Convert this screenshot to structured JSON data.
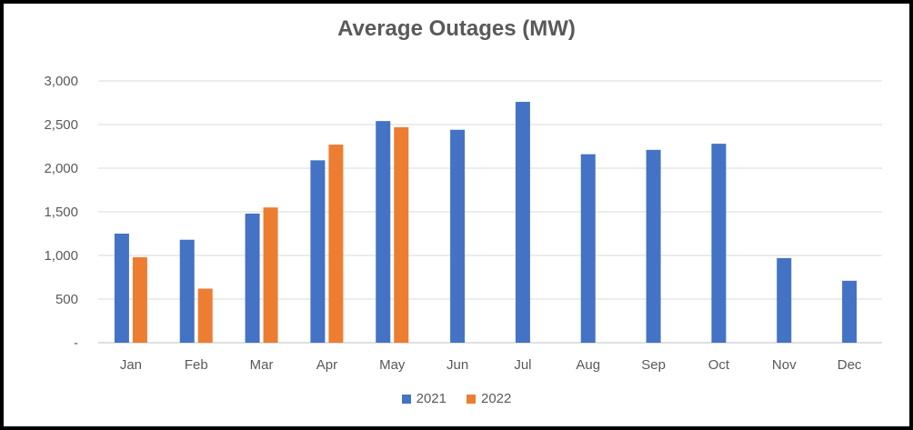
{
  "chart_data": {
    "type": "bar",
    "title": "Average Outages (MW)",
    "xlabel": "",
    "ylabel": "",
    "categories": [
      "Jan",
      "Feb",
      "Mar",
      "Apr",
      "May",
      "Jun",
      "Jul",
      "Aug",
      "Sep",
      "Oct",
      "Nov",
      "Dec"
    ],
    "series": [
      {
        "name": "2021",
        "color": "#4472C4",
        "values": [
          1250,
          1180,
          1480,
          2090,
          2540,
          2440,
          2760,
          2160,
          2210,
          2280,
          970,
          710
        ]
      },
      {
        "name": "2022",
        "color": "#ED7D31",
        "values": [
          980,
          620,
          1550,
          2270,
          2470,
          null,
          null,
          null,
          null,
          null,
          null,
          null
        ]
      }
    ],
    "ylim": [
      0,
      3000
    ],
    "yticks": [
      0,
      500,
      1000,
      1500,
      2000,
      2500,
      3000
    ],
    "ytick_labels": [
      "-",
      "500",
      "1,000",
      "1,500",
      "2,000",
      "2,500",
      "3,000"
    ],
    "grid": true,
    "legend_position": "bottom"
  }
}
